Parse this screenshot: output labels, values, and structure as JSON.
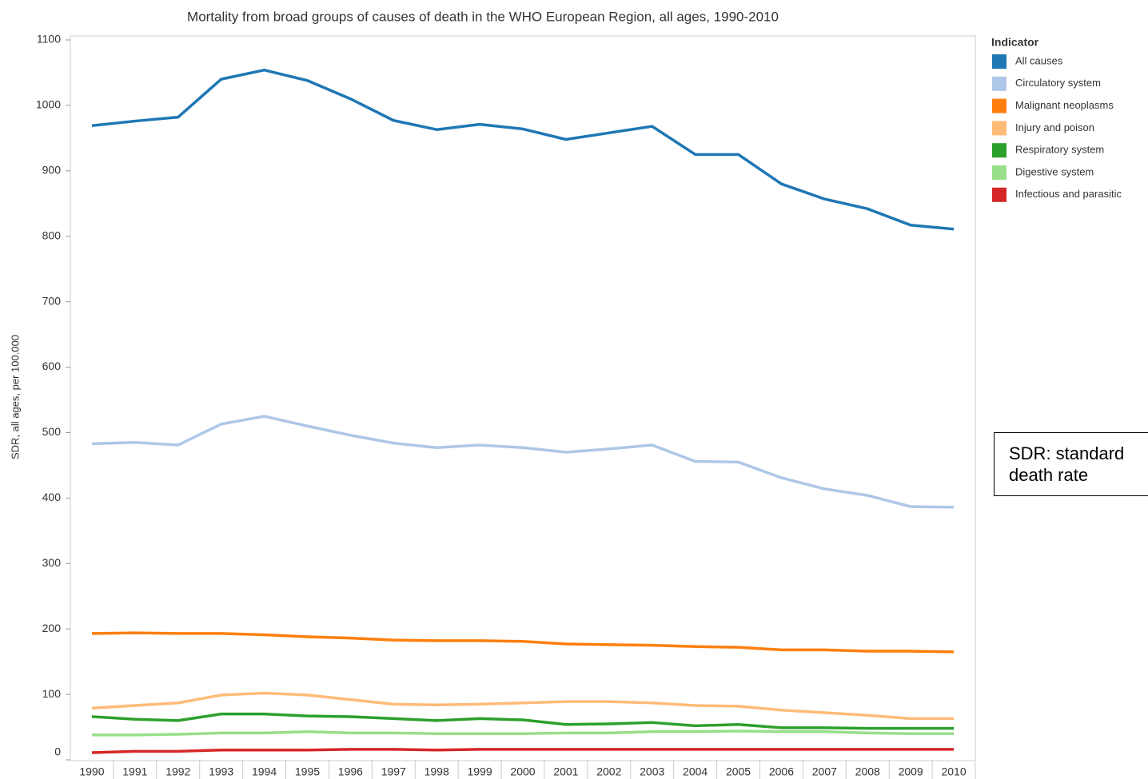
{
  "chart_data": {
    "type": "line",
    "title": "Mortality from broad groups of causes of death in the WHO European Region, all ages, 1990-2010",
    "ylabel": "SDR, all ages,  per 100.000",
    "legend_title": "Indicator",
    "annotation": "SDR: standard death rate",
    "categories": [
      "1990",
      "1991",
      "1992",
      "1993",
      "1994",
      "1995",
      "1996",
      "1997",
      "1998",
      "1999",
      "2000",
      "2001",
      "2002",
      "2003",
      "2004",
      "2005",
      "2006",
      "2007",
      "2008",
      "2009",
      "2010"
    ],
    "ylim": [
      0,
      1100
    ],
    "yticks": [
      0,
      100,
      200,
      300,
      400,
      500,
      600,
      700,
      800,
      900,
      1000,
      1100
    ],
    "grid": false,
    "legend": "top-right",
    "series": [
      {
        "name": "All causes",
        "color": "#1f77b4",
        "values": [
          969,
          976,
          982,
          1040,
          1054,
          1038,
          1010,
          977,
          963,
          971,
          964,
          948,
          958,
          968,
          925,
          925,
          880,
          857,
          842,
          817,
          811
        ]
      },
      {
        "name": "Circulatory system",
        "color": "#aec7e8",
        "values": [
          483,
          485,
          481,
          513,
          525,
          510,
          496,
          484,
          477,
          481,
          477,
          470,
          475,
          481,
          456,
          455,
          431,
          414,
          404,
          387,
          386
        ]
      },
      {
        "name": "Malignant neoplasms",
        "color": "#ff7f0e",
        "values": [
          193,
          194,
          193,
          193,
          191,
          188,
          186,
          183,
          182,
          182,
          181,
          177,
          176,
          175,
          173,
          172,
          168,
          168,
          166,
          166,
          165
        ]
      },
      {
        "name": "Injury and poison",
        "color": "#ffbb78",
        "values": [
          79,
          83,
          87,
          99,
          102,
          99,
          92,
          85,
          84,
          85,
          87,
          89,
          89,
          87,
          83,
          82,
          76,
          72,
          68,
          63,
          63
        ]
      },
      {
        "name": "Respiratory system",
        "color": "#2ca02c",
        "values": [
          66,
          62,
          60,
          70,
          70,
          67,
          66,
          63,
          60,
          63,
          61,
          54,
          55,
          57,
          52,
          54,
          49,
          49,
          48,
          48,
          48
        ]
      },
      {
        "name": "Digestive system",
        "color": "#98df8a",
        "values": [
          38,
          38,
          39,
          41,
          41,
          43,
          41,
          41,
          40,
          40,
          40,
          41,
          41,
          43,
          43,
          44,
          43,
          43,
          41,
          40,
          40
        ]
      },
      {
        "name": "Infectious and parasitic",
        "color": "#d62728",
        "values": [
          11,
          13,
          13,
          15,
          15,
          15,
          16,
          16,
          15,
          16,
          16,
          16,
          16,
          16,
          16,
          16,
          16,
          16,
          16,
          16,
          16
        ]
      }
    ]
  }
}
